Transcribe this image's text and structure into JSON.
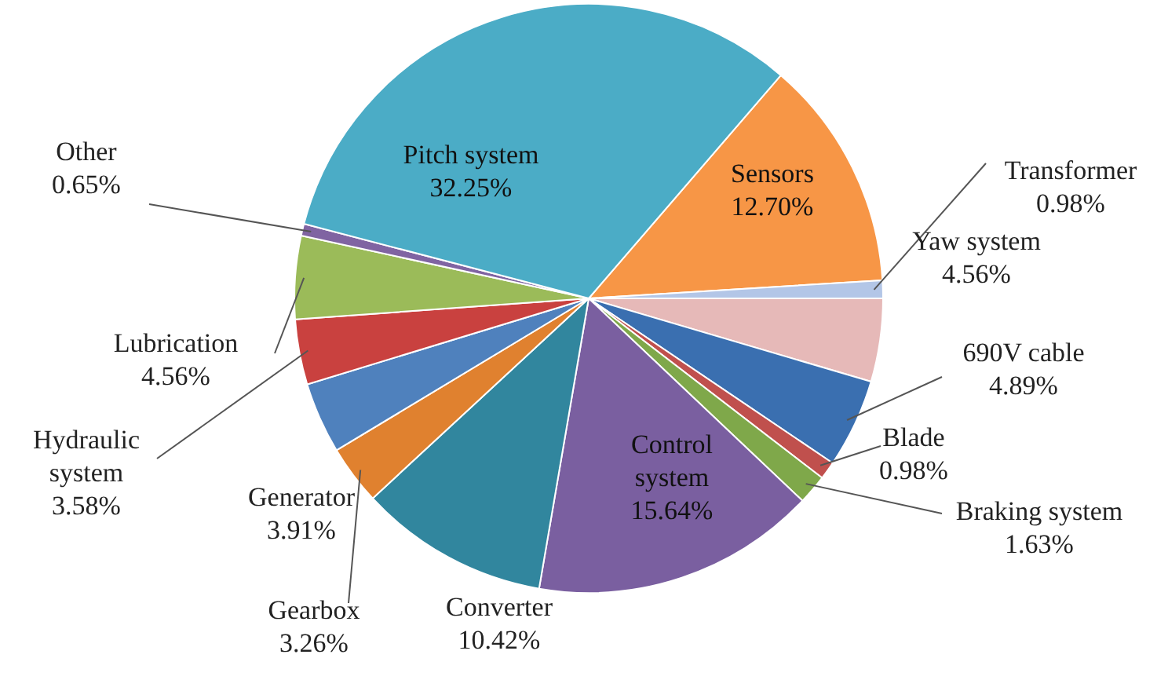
{
  "chart_data": {
    "type": "pie",
    "categories": [
      "Sensors",
      "Transformer",
      "Yaw  system",
      "690V cable",
      "Blade",
      "Braking system",
      "Control system",
      "Converter",
      "Gearbox",
      "Generator",
      "Hydraulic system",
      "Lubrication",
      "Other",
      "Pitch system"
    ],
    "values": [
      12.7,
      0.98,
      4.56,
      4.89,
      0.98,
      1.63,
      15.64,
      10.42,
      3.26,
      3.91,
      3.58,
      4.56,
      0.65,
      32.25
    ],
    "colors": [
      "#f79646",
      "#b3c6e7",
      "#e6b9b8",
      "#3a6fb0",
      "#c0504d",
      "#7fa84a",
      "#7a5fa0",
      "#31869e",
      "#e0812f",
      "#4f81bd",
      "#c9413f",
      "#9bbb59",
      "#8064a2",
      "#4bacc6"
    ],
    "value_labels": [
      "12.70%",
      "0.98%",
      "4.56%",
      "4.89%",
      "0.98%",
      "1.63%",
      "15.64%",
      "10.42%",
      "3.26%",
      "3.91%",
      "3.58%",
      "4.56%",
      "0.65%",
      "32.25%"
    ],
    "data_labels": true,
    "legend": false
  }
}
